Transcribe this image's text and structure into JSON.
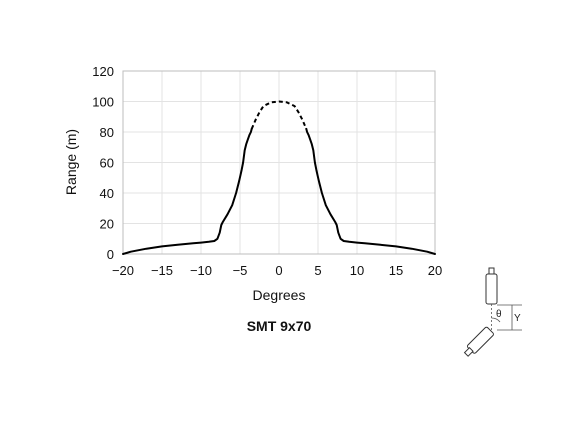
{
  "chart_data": {
    "type": "line",
    "title": "SMT 9x70",
    "xlabel": "Degrees",
    "ylabel": "Range (m)",
    "xlim": [
      -20,
      20
    ],
    "ylim": [
      0,
      120
    ],
    "xticks": [
      -20,
      -15,
      -10,
      -5,
      0,
      5,
      10,
      15,
      20
    ],
    "xtick_labels": [
      "−20",
      "−15",
      "−10",
      "−5",
      "0",
      "5",
      "10",
      "15",
      "20"
    ],
    "yticks": [
      0,
      20,
      40,
      60,
      80,
      100,
      120
    ],
    "grid": true,
    "series": [
      {
        "style": "solid",
        "x": [
          -20,
          -19,
          -17,
          -15,
          -13,
          -11,
          -10,
          -9,
          -8.3,
          -7.9,
          -7.6,
          -7.4,
          -7.2,
          -6.6,
          -6.0,
          -5.5,
          -5.1,
          -4.8,
          -4.6,
          -4.4,
          -4.2,
          -4.0,
          -3.8,
          -3.6,
          -3.5
        ],
        "y": [
          0,
          1.5,
          3.5,
          5,
          6,
          7,
          7.5,
          8,
          8.5,
          10,
          14,
          19,
          21,
          26,
          32,
          40,
          48,
          55,
          60,
          68,
          72,
          75,
          78,
          80,
          82
        ]
      },
      {
        "style": "dashed",
        "x": [
          -3.5,
          -3.0,
          -2.5,
          -2.0,
          -1.0,
          0,
          1.0,
          2.0,
          2.5,
          3.0,
          3.5
        ],
        "y": [
          82,
          88,
          93,
          97,
          99.5,
          100,
          99.5,
          97,
          93,
          88,
          82
        ]
      },
      {
        "style": "solid",
        "x": [
          3.5,
          3.6,
          3.8,
          4.0,
          4.2,
          4.4,
          4.6,
          4.8,
          5.1,
          5.5,
          6.0,
          6.6,
          7.2,
          7.4,
          7.6,
          7.9,
          8.3,
          9,
          10,
          11,
          13,
          15,
          17,
          19,
          20
        ],
        "y": [
          82,
          80,
          78,
          75,
          72,
          68,
          60,
          55,
          48,
          40,
          32,
          26,
          21,
          19,
          14,
          10,
          8.5,
          8,
          7.5,
          7,
          6,
          5,
          3.5,
          1.5,
          0
        ]
      }
    ],
    "diagram": {
      "angle_symbol": "θ",
      "offset_symbol": "Y"
    }
  }
}
